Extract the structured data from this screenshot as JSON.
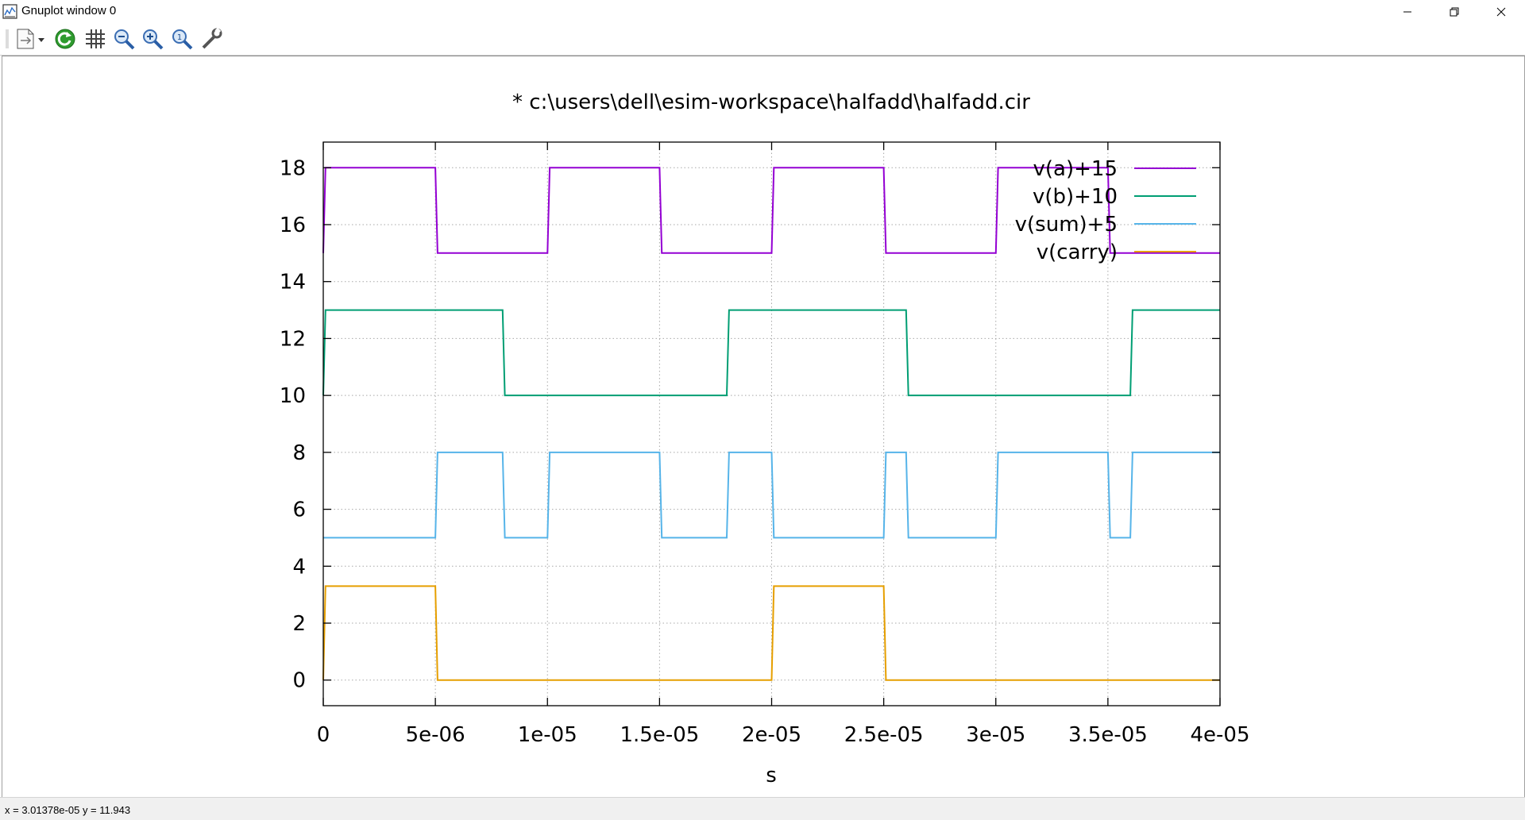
{
  "window": {
    "title": "Gnuplot window 0",
    "controls": {
      "minimize_icon": "minimize-icon",
      "maximize_icon": "restore-icon",
      "close_icon": "close-icon"
    }
  },
  "toolbar": {
    "items": [
      {
        "name": "copy-print-menu-button",
        "icon": "document-icon"
      },
      {
        "name": "replot-button",
        "icon": "refresh-icon"
      },
      {
        "name": "grid-toggle-button",
        "icon": "grid-icon"
      },
      {
        "name": "zoom-previous-button",
        "icon": "zoom-out-icon"
      },
      {
        "name": "zoom-next-button",
        "icon": "zoom-in-icon"
      },
      {
        "name": "autoscale-button",
        "icon": "zoom-reset-icon"
      },
      {
        "name": "options-button",
        "icon": "wrench-icon"
      }
    ]
  },
  "status": {
    "readout": "x = 3.01378e-05 y = 11.943"
  },
  "chart_data": {
    "type": "line",
    "title": "* c:\\users\\dell\\esim-workspace\\halfadd\\halfadd.cir",
    "xlabel": "s",
    "ylabel": "",
    "xlim": [
      0,
      4e-05
    ],
    "ylim": [
      -0.9,
      18.9
    ],
    "xticks": [
      0,
      5e-06,
      1e-05,
      1.5e-05,
      2e-05,
      2.5e-05,
      3e-05,
      3.5e-05,
      4e-05
    ],
    "xtick_labels": [
      "0",
      "5e-06",
      "1e-05",
      "1.5e-05",
      "2e-05",
      "2.5e-05",
      "3e-05",
      "3.5e-05",
      "4e-05"
    ],
    "yticks": [
      0,
      2,
      4,
      6,
      8,
      10,
      12,
      14,
      16,
      18
    ],
    "ytick_labels": [
      "0",
      "2",
      "4",
      "6",
      "8",
      "10",
      "12",
      "14",
      "16",
      "18"
    ],
    "grid": true,
    "legend_position": "top-right",
    "series": [
      {
        "name": "v(a)+15",
        "color": "#9400d3",
        "x": [
          0,
          1e-07,
          5e-06,
          5.1e-06,
          1e-05,
          1.01e-05,
          1.5e-05,
          1.51e-05,
          2e-05,
          2.01e-05,
          2.5e-05,
          2.51e-05,
          3e-05,
          3.01e-05,
          3.5e-05,
          3.51e-05,
          4e-05
        ],
        "y": [
          15,
          18,
          18,
          15,
          15,
          18,
          18,
          15,
          15,
          18,
          18,
          15,
          15,
          18,
          18,
          15,
          15
        ]
      },
      {
        "name": "v(b)+10",
        "color": "#009e73",
        "x": [
          0,
          1e-07,
          8e-06,
          8.1e-06,
          1.8e-05,
          1.81e-05,
          2.6e-05,
          2.61e-05,
          3.6e-05,
          3.61e-05,
          4e-05
        ],
        "y": [
          10,
          13,
          13,
          10,
          10,
          13,
          13,
          10,
          10,
          13,
          13
        ]
      },
      {
        "name": "v(sum)+5",
        "color": "#56b4e9",
        "x": [
          0,
          5e-06,
          5.1e-06,
          8e-06,
          8.1e-06,
          1e-05,
          1.01e-05,
          1.5e-05,
          1.51e-05,
          1.8e-05,
          1.81e-05,
          2e-05,
          2.01e-05,
          2.5e-05,
          2.51e-05,
          2.6e-05,
          2.61e-05,
          3e-05,
          3.01e-05,
          3.5e-05,
          3.51e-05,
          3.6e-05,
          3.61e-05,
          4e-05
        ],
        "y": [
          5,
          5,
          8,
          8,
          5,
          5,
          8,
          8,
          5,
          5,
          8,
          8,
          5,
          5,
          8,
          8,
          5,
          5,
          8,
          8,
          5,
          5,
          8,
          8
        ]
      },
      {
        "name": "v(carry)",
        "color": "#e69f00",
        "x": [
          0,
          1e-07,
          5e-06,
          5.1e-06,
          2e-05,
          2.01e-05,
          2.5e-05,
          2.51e-05,
          4e-05
        ],
        "y": [
          0,
          3.3,
          3.3,
          0,
          0,
          3.3,
          3.3,
          0,
          0
        ]
      }
    ]
  }
}
